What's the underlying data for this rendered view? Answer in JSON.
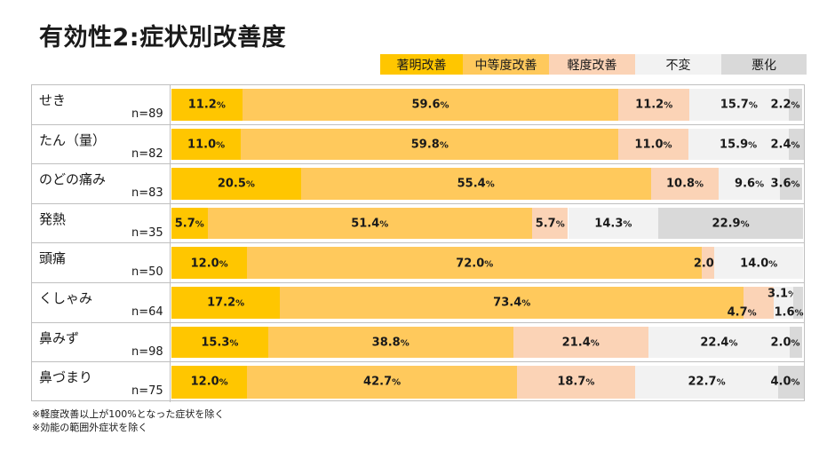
{
  "title": "有効性2:症状別改善度",
  "chart_data": {
    "type": "bar",
    "orientation": "horizontal",
    "stacked": true,
    "title": "有効性2:症状別改善度",
    "xlim": [
      0,
      100
    ],
    "legend_position": "top-right",
    "series": [
      {
        "name": "著明改善",
        "color": "#FFC600"
      },
      {
        "name": "中等度改善",
        "color": "#FFC95C"
      },
      {
        "name": "軽度改善",
        "color": "#FBD3B6"
      },
      {
        "name": "不変",
        "color": "#F2F2F2"
      },
      {
        "name": "悪化",
        "color": "#D9D9D9"
      }
    ],
    "categories": [
      {
        "label": "せき",
        "n": "n=89",
        "values": [
          11.2,
          59.6,
          11.2,
          15.7,
          2.2
        ]
      },
      {
        "label": "たん（量）",
        "n": "n=82",
        "values": [
          11.0,
          59.8,
          11.0,
          15.9,
          2.4
        ]
      },
      {
        "label": "のどの痛み",
        "n": "n=83",
        "values": [
          20.5,
          55.4,
          10.8,
          9.6,
          3.6
        ]
      },
      {
        "label": "発熱",
        "n": "n=35",
        "values": [
          5.7,
          51.4,
          5.7,
          14.3,
          22.9
        ]
      },
      {
        "label": "頭痛",
        "n": "n=50",
        "values": [
          12.0,
          72.0,
          2.0,
          14.0,
          0
        ]
      },
      {
        "label": "くしゃみ",
        "n": "n=64",
        "values": [
          17.2,
          73.4,
          4.7,
          3.1,
          1.6
        ]
      },
      {
        "label": "鼻みず",
        "n": "n=98",
        "values": [
          15.3,
          38.8,
          21.4,
          22.4,
          2.0
        ]
      },
      {
        "label": "鼻づまり",
        "n": "n=75",
        "values": [
          12.0,
          42.7,
          18.7,
          22.7,
          4.0
        ]
      }
    ]
  },
  "notes": [
    "※軽度改善以上が100%となった症状を除く",
    "※効能の範囲外症状を除く"
  ]
}
